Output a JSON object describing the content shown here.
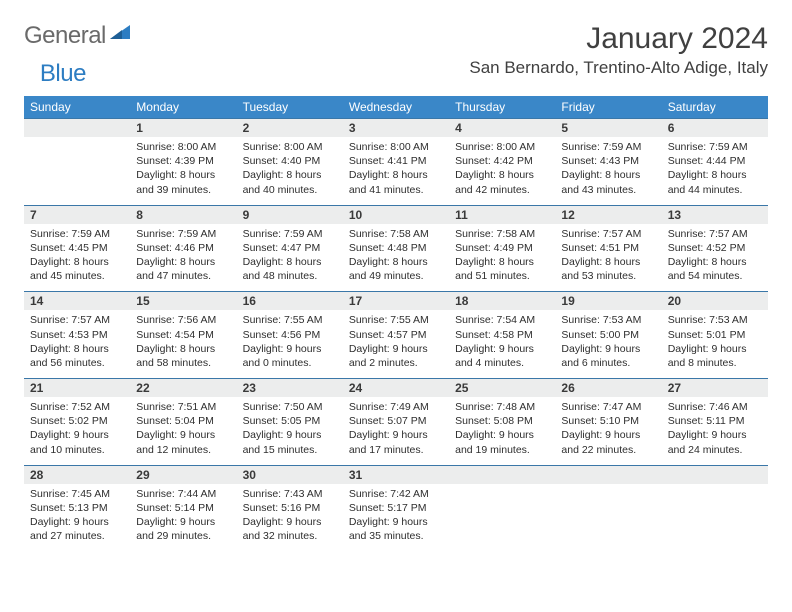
{
  "logo": {
    "text1": "General",
    "text2": "Blue"
  },
  "title": "January 2024",
  "location": "San Bernardo, Trentino-Alto Adige, Italy",
  "colors": {
    "header_bg": "#3a87c8",
    "header_fg": "#ffffff",
    "daynum_bg": "#eceded",
    "border": "#3a77a8",
    "body_text": "#2e2e2e",
    "title_text": "#404040",
    "logo_gray": "#6a6a6a",
    "logo_blue": "#2d7dc2"
  },
  "dow": [
    "Sunday",
    "Monday",
    "Tuesday",
    "Wednesday",
    "Thursday",
    "Friday",
    "Saturday"
  ],
  "weeks": [
    [
      {
        "n": "",
        "sr": "",
        "ss": "",
        "dl": ""
      },
      {
        "n": "1",
        "sr": "Sunrise: 8:00 AM",
        "ss": "Sunset: 4:39 PM",
        "dl": "Daylight: 8 hours and 39 minutes."
      },
      {
        "n": "2",
        "sr": "Sunrise: 8:00 AM",
        "ss": "Sunset: 4:40 PM",
        "dl": "Daylight: 8 hours and 40 minutes."
      },
      {
        "n": "3",
        "sr": "Sunrise: 8:00 AM",
        "ss": "Sunset: 4:41 PM",
        "dl": "Daylight: 8 hours and 41 minutes."
      },
      {
        "n": "4",
        "sr": "Sunrise: 8:00 AM",
        "ss": "Sunset: 4:42 PM",
        "dl": "Daylight: 8 hours and 42 minutes."
      },
      {
        "n": "5",
        "sr": "Sunrise: 7:59 AM",
        "ss": "Sunset: 4:43 PM",
        "dl": "Daylight: 8 hours and 43 minutes."
      },
      {
        "n": "6",
        "sr": "Sunrise: 7:59 AM",
        "ss": "Sunset: 4:44 PM",
        "dl": "Daylight: 8 hours and 44 minutes."
      }
    ],
    [
      {
        "n": "7",
        "sr": "Sunrise: 7:59 AM",
        "ss": "Sunset: 4:45 PM",
        "dl": "Daylight: 8 hours and 45 minutes."
      },
      {
        "n": "8",
        "sr": "Sunrise: 7:59 AM",
        "ss": "Sunset: 4:46 PM",
        "dl": "Daylight: 8 hours and 47 minutes."
      },
      {
        "n": "9",
        "sr": "Sunrise: 7:59 AM",
        "ss": "Sunset: 4:47 PM",
        "dl": "Daylight: 8 hours and 48 minutes."
      },
      {
        "n": "10",
        "sr": "Sunrise: 7:58 AM",
        "ss": "Sunset: 4:48 PM",
        "dl": "Daylight: 8 hours and 49 minutes."
      },
      {
        "n": "11",
        "sr": "Sunrise: 7:58 AM",
        "ss": "Sunset: 4:49 PM",
        "dl": "Daylight: 8 hours and 51 minutes."
      },
      {
        "n": "12",
        "sr": "Sunrise: 7:57 AM",
        "ss": "Sunset: 4:51 PM",
        "dl": "Daylight: 8 hours and 53 minutes."
      },
      {
        "n": "13",
        "sr": "Sunrise: 7:57 AM",
        "ss": "Sunset: 4:52 PM",
        "dl": "Daylight: 8 hours and 54 minutes."
      }
    ],
    [
      {
        "n": "14",
        "sr": "Sunrise: 7:57 AM",
        "ss": "Sunset: 4:53 PM",
        "dl": "Daylight: 8 hours and 56 minutes."
      },
      {
        "n": "15",
        "sr": "Sunrise: 7:56 AM",
        "ss": "Sunset: 4:54 PM",
        "dl": "Daylight: 8 hours and 58 minutes."
      },
      {
        "n": "16",
        "sr": "Sunrise: 7:55 AM",
        "ss": "Sunset: 4:56 PM",
        "dl": "Daylight: 9 hours and 0 minutes."
      },
      {
        "n": "17",
        "sr": "Sunrise: 7:55 AM",
        "ss": "Sunset: 4:57 PM",
        "dl": "Daylight: 9 hours and 2 minutes."
      },
      {
        "n": "18",
        "sr": "Sunrise: 7:54 AM",
        "ss": "Sunset: 4:58 PM",
        "dl": "Daylight: 9 hours and 4 minutes."
      },
      {
        "n": "19",
        "sr": "Sunrise: 7:53 AM",
        "ss": "Sunset: 5:00 PM",
        "dl": "Daylight: 9 hours and 6 minutes."
      },
      {
        "n": "20",
        "sr": "Sunrise: 7:53 AM",
        "ss": "Sunset: 5:01 PM",
        "dl": "Daylight: 9 hours and 8 minutes."
      }
    ],
    [
      {
        "n": "21",
        "sr": "Sunrise: 7:52 AM",
        "ss": "Sunset: 5:02 PM",
        "dl": "Daylight: 9 hours and 10 minutes."
      },
      {
        "n": "22",
        "sr": "Sunrise: 7:51 AM",
        "ss": "Sunset: 5:04 PM",
        "dl": "Daylight: 9 hours and 12 minutes."
      },
      {
        "n": "23",
        "sr": "Sunrise: 7:50 AM",
        "ss": "Sunset: 5:05 PM",
        "dl": "Daylight: 9 hours and 15 minutes."
      },
      {
        "n": "24",
        "sr": "Sunrise: 7:49 AM",
        "ss": "Sunset: 5:07 PM",
        "dl": "Daylight: 9 hours and 17 minutes."
      },
      {
        "n": "25",
        "sr": "Sunrise: 7:48 AM",
        "ss": "Sunset: 5:08 PM",
        "dl": "Daylight: 9 hours and 19 minutes."
      },
      {
        "n": "26",
        "sr": "Sunrise: 7:47 AM",
        "ss": "Sunset: 5:10 PM",
        "dl": "Daylight: 9 hours and 22 minutes."
      },
      {
        "n": "27",
        "sr": "Sunrise: 7:46 AM",
        "ss": "Sunset: 5:11 PM",
        "dl": "Daylight: 9 hours and 24 minutes."
      }
    ],
    [
      {
        "n": "28",
        "sr": "Sunrise: 7:45 AM",
        "ss": "Sunset: 5:13 PM",
        "dl": "Daylight: 9 hours and 27 minutes."
      },
      {
        "n": "29",
        "sr": "Sunrise: 7:44 AM",
        "ss": "Sunset: 5:14 PM",
        "dl": "Daylight: 9 hours and 29 minutes."
      },
      {
        "n": "30",
        "sr": "Sunrise: 7:43 AM",
        "ss": "Sunset: 5:16 PM",
        "dl": "Daylight: 9 hours and 32 minutes."
      },
      {
        "n": "31",
        "sr": "Sunrise: 7:42 AM",
        "ss": "Sunset: 5:17 PM",
        "dl": "Daylight: 9 hours and 35 minutes."
      },
      {
        "n": "",
        "sr": "",
        "ss": "",
        "dl": ""
      },
      {
        "n": "",
        "sr": "",
        "ss": "",
        "dl": ""
      },
      {
        "n": "",
        "sr": "",
        "ss": "",
        "dl": ""
      }
    ]
  ]
}
